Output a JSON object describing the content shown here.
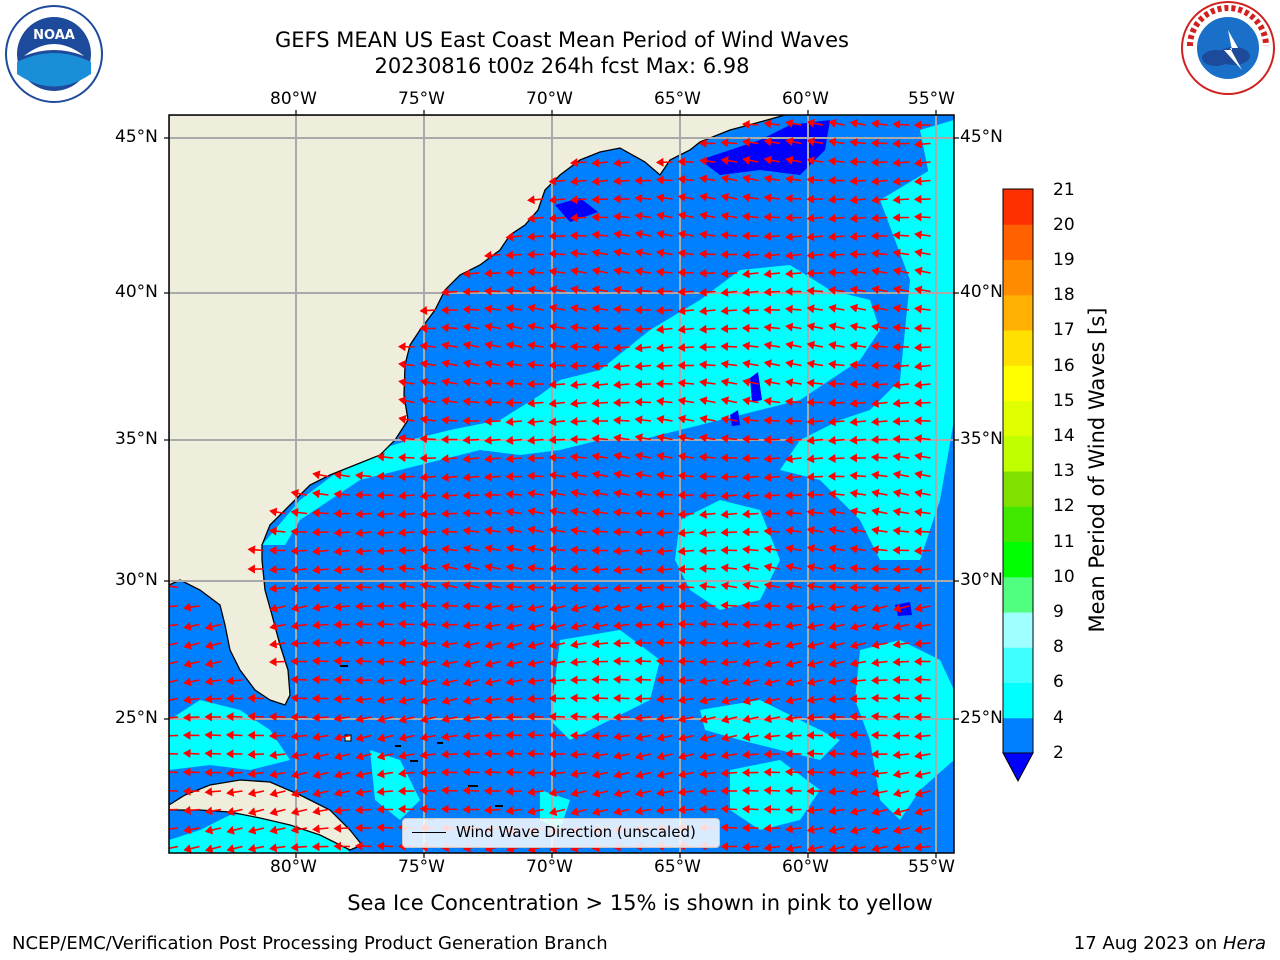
{
  "title": {
    "line1": "GEFS MEAN US East Coast Mean Period of Wind Waves",
    "line2": "20230816 t00z 264h fcst   Max: 6.98"
  },
  "logos": {
    "left": {
      "name": "noaa-logo",
      "text": "NOAA",
      "ring_text": "NATIONAL OCEANIC AND ATMOSPHERIC ADMINISTRATION · U.S. DEPARTMENT OF COMMERCE"
    },
    "right": {
      "name": "nws-logo",
      "ring_text": "NATIONAL WEATHER SERVICE"
    }
  },
  "map": {
    "lon_labels": [
      "80°W",
      "75°W",
      "70°W",
      "65°W",
      "60°W",
      "55°W"
    ],
    "lat_labels": [
      "45°N",
      "40°N",
      "35°N",
      "30°N",
      "25°N"
    ],
    "colors": {
      "ocean": "#0080ff",
      "land": "#efeedc",
      "shade_4_6": "#00ffff",
      "shade_6_8": "#40ffff",
      "shade_below_2": "#0000ff",
      "arrow": "#ff0000",
      "grid": "#aaaaaa"
    },
    "legend": {
      "text": "Wind Wave Direction (unscaled)"
    }
  },
  "colorbar": {
    "label": "Mean Period of Wind Waves [s]",
    "ticks": [
      "2",
      "4",
      "6",
      "8",
      "9",
      "10",
      "11",
      "12",
      "13",
      "14",
      "15",
      "16",
      "17",
      "18",
      "19",
      "20",
      "21"
    ],
    "colors": [
      "#0080ff",
      "#00ffff",
      "#40ffff",
      "#a0ffff",
      "#50ff80",
      "#00ff00",
      "#40e800",
      "#80e000",
      "#c0ff00",
      "#e0ff00",
      "#ffff00",
      "#ffe000",
      "#ffb000",
      "#ff8c00",
      "#ff6000",
      "#ff3000",
      "#ff0000"
    ],
    "under_color": "#0000ff"
  },
  "footer": {
    "note": "Sea Ice Concentration > 15% is shown in pink to yellow",
    "left": "NCEP/EMC/Verification Post Processing Product Generation Branch",
    "right_prefix": "17 Aug 2023 on ",
    "right_host": "Hera"
  }
}
